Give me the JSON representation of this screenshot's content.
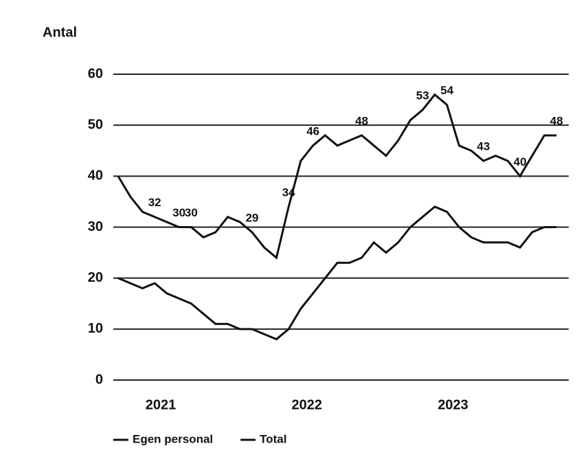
{
  "chart_data": {
    "type": "line",
    "y_label": "Antal",
    "x": [
      0,
      1,
      2,
      3,
      4,
      5,
      6,
      7,
      8,
      9,
      10,
      11,
      12,
      13,
      14,
      15,
      16,
      17,
      18,
      19,
      20,
      21,
      22,
      23,
      24,
      25,
      26,
      27,
      28,
      29,
      30,
      31,
      32,
      33,
      34,
      35,
      36
    ],
    "xlim": [
      0,
      37
    ],
    "xticks": [
      {
        "value": 3.5,
        "label": "2021"
      },
      {
        "value": 15.5,
        "label": "2022"
      },
      {
        "value": 27.5,
        "label": "2023"
      }
    ],
    "ylim": [
      0,
      60
    ],
    "yticks": [
      0,
      10,
      20,
      30,
      40,
      50,
      60
    ],
    "grid": true,
    "legend": "bottom",
    "series": [
      {
        "name": "Egen personal",
        "color": "#111111",
        "values": [
          20,
          19,
          18,
          19,
          17,
          16,
          15,
          13,
          11,
          11,
          10,
          10,
          9,
          8,
          10,
          14,
          17,
          20,
          23,
          23,
          24,
          27,
          25,
          27,
          30,
          32,
          34,
          33,
          30,
          28,
          27,
          27,
          27,
          26,
          29,
          30,
          30
        ]
      },
      {
        "name": "Total",
        "color": "#111111",
        "values": [
          40,
          36,
          33,
          32,
          31,
          30,
          30,
          28,
          29,
          32,
          31,
          29,
          26,
          24,
          34,
          43,
          46,
          48,
          46,
          47,
          48,
          46,
          44,
          47,
          51,
          53,
          56,
          54,
          46,
          45,
          43,
          44,
          43,
          40,
          44,
          48,
          48
        ],
        "value_labels": [
          null,
          null,
          null,
          "32",
          null,
          "30",
          "30",
          null,
          null,
          null,
          null,
          "29",
          null,
          null,
          "34",
          null,
          "46",
          null,
          null,
          null,
          "48",
          null,
          null,
          null,
          null,
          "53",
          null,
          "54",
          null,
          null,
          "43",
          null,
          null,
          "40",
          null,
          null,
          "48"
        ]
      }
    ]
  }
}
